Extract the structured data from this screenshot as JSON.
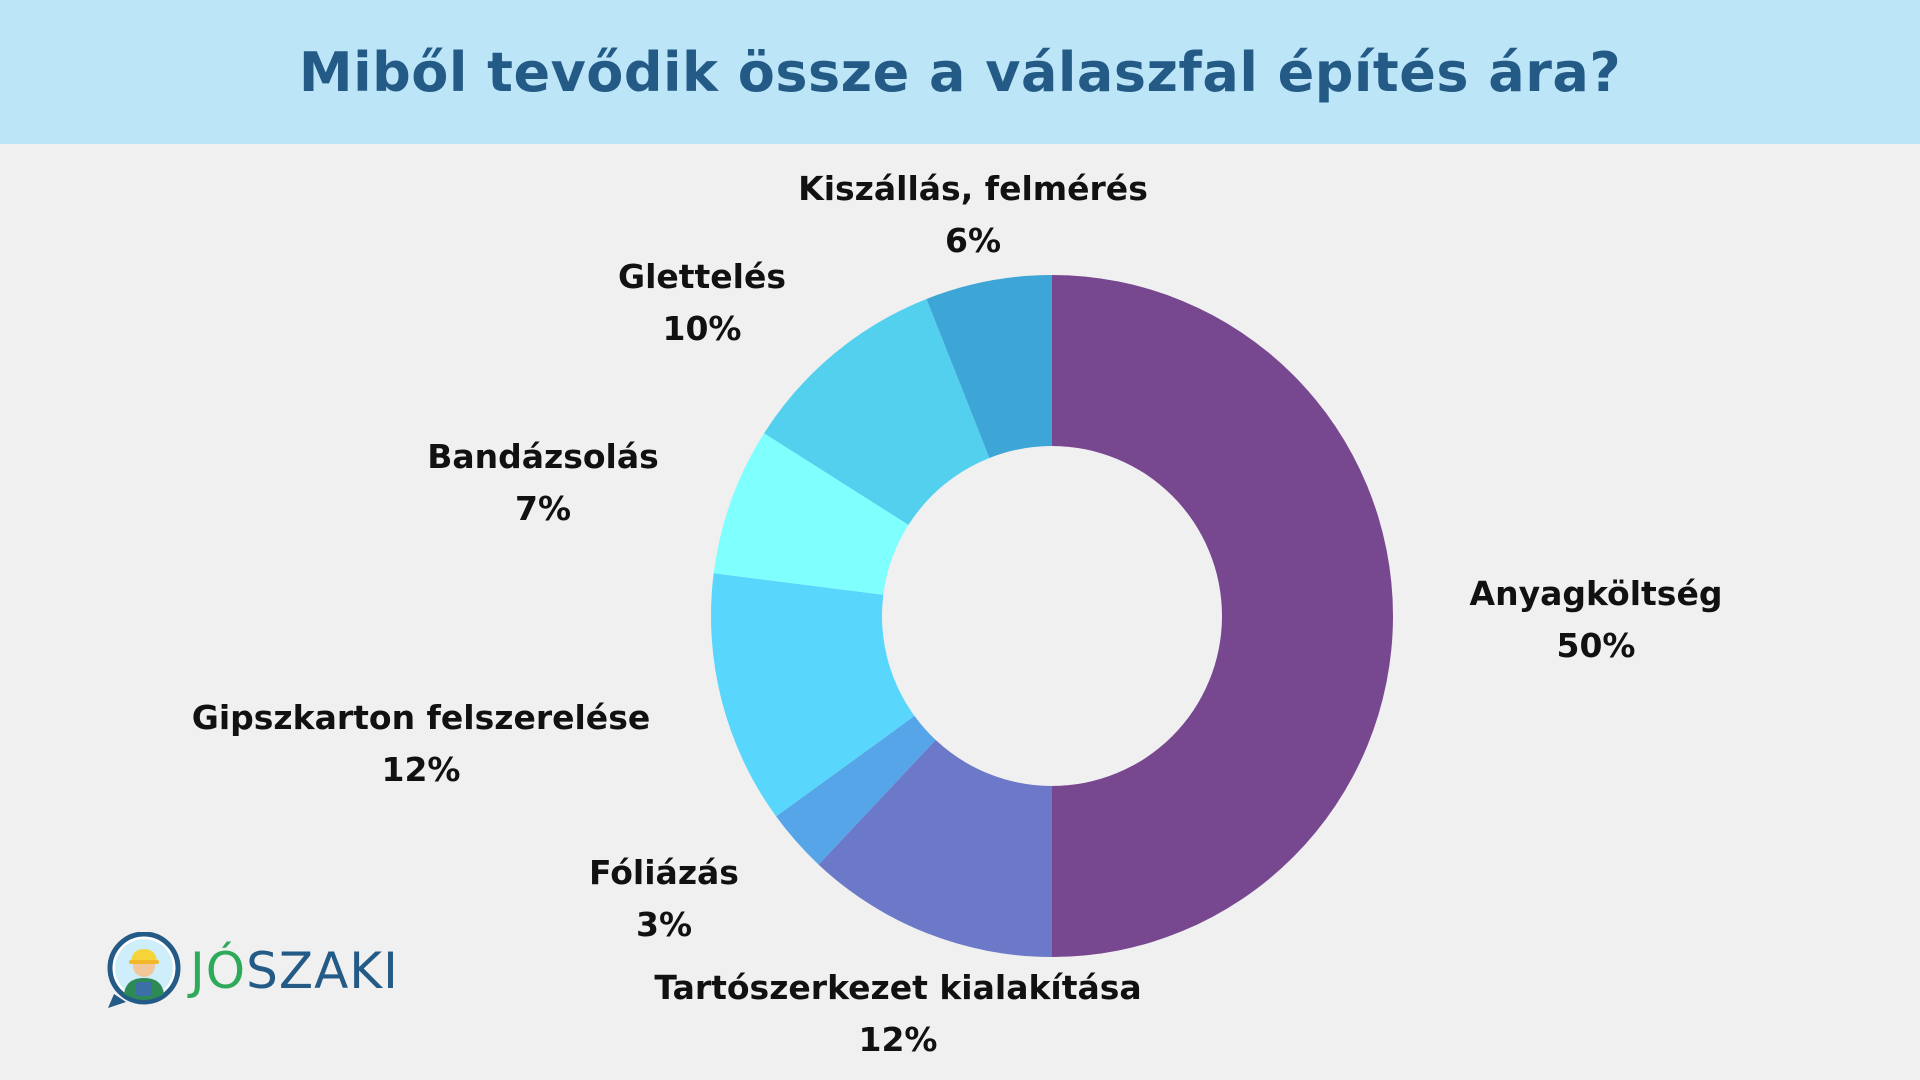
{
  "header": {
    "title": "Miből tevődik össze a válaszfal építés ára?"
  },
  "colors": {
    "header_bg": "#bde5f8",
    "title": "#245a86",
    "background": "#f0f0f0"
  },
  "chart_data": {
    "type": "pie",
    "style": "donut",
    "title": "Miből tevődik össze a válaszfal építés ára?",
    "unit": "%",
    "slices": [
      {
        "label": "Anyagköltség",
        "value": 50,
        "value_label": "50%",
        "color": "#77478f"
      },
      {
        "label": "Tartószerkezet kialakítása",
        "value": 12,
        "value_label": "12%",
        "color": "#6c78c8"
      },
      {
        "label": "Fóliázás",
        "value": 3,
        "value_label": "3%",
        "color": "#55a5e8"
      },
      {
        "label": "Gipszkarton felszerelése",
        "value": 12,
        "value_label": "12%",
        "color": "#58d6fb"
      },
      {
        "label": "Bandázsolás",
        "value": 7,
        "value_label": "7%",
        "color": "#80ffff"
      },
      {
        "label": "Glettelés",
        "value": 10,
        "value_label": "10%",
        "color": "#52d0ee"
      },
      {
        "label": "Kiszállás, felmérés",
        "value": 6,
        "value_label": "6%",
        "color": "#3da6d6"
      }
    ],
    "legend": "none"
  },
  "logo": {
    "text_jo": "JÓ",
    "text_szaki": "SZAKI",
    "icon": "worker-avatar-icon"
  }
}
